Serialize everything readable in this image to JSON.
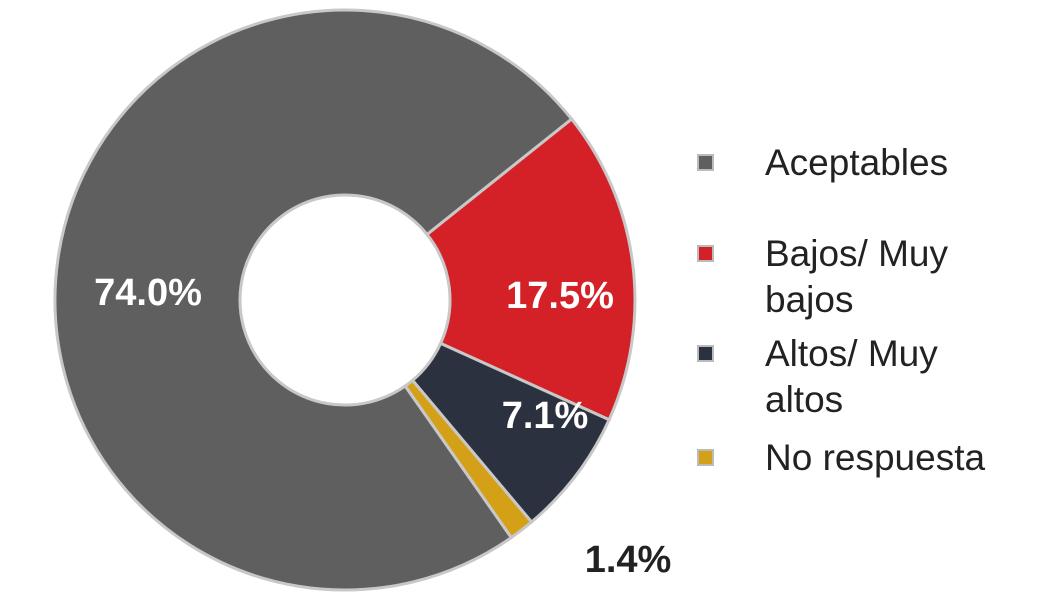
{
  "chart_data": {
    "type": "donut",
    "categories": [
      "Aceptables",
      "Bajos/ Muy bajos",
      "Altos/ Muy altos",
      "No respuesta"
    ],
    "values": [
      74.0,
      17.5,
      7.1,
      1.4
    ],
    "value_labels": [
      "74.0%",
      "17.5%",
      "7.1%",
      "1.4%"
    ],
    "colors": [
      "#5f5f5f",
      "#d42027",
      "#2c3140",
      "#d4a017"
    ]
  }
}
